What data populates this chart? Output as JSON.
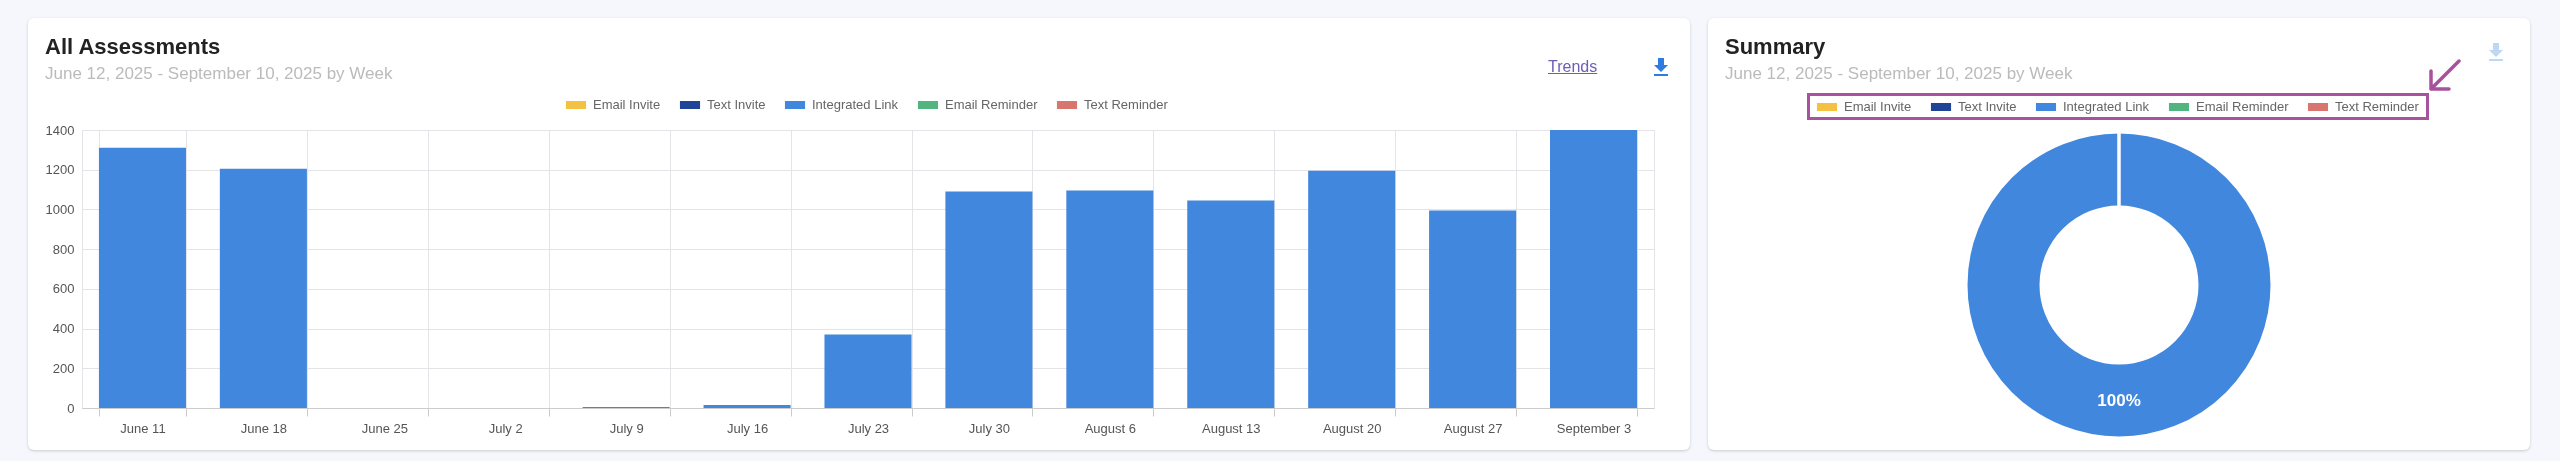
{
  "chart_data": [
    {
      "type": "bar",
      "title": "All Assessments",
      "subtitle": "June 12, 2025 - September 10, 2025 by Week",
      "stacked": true,
      "categories": [
        "June 11",
        "June 18",
        "June 25",
        "July 2",
        "July 9",
        "July 16",
        "July 23",
        "July 30",
        "August 6",
        "August 13",
        "August 20",
        "August 27",
        "September 3"
      ],
      "series": [
        {
          "name": "Email Invite",
          "color": "#f4c142",
          "values": [
            0,
            0,
            0,
            0,
            0,
            0,
            0,
            0,
            0,
            0,
            0,
            0,
            0
          ]
        },
        {
          "name": "Text Invite",
          "color": "#1f4497",
          "values": [
            0,
            0,
            0,
            0,
            0,
            0,
            0,
            0,
            0,
            0,
            0,
            0,
            0
          ]
        },
        {
          "name": "Integrated Link",
          "color": "#4287de",
          "values": [
            1310,
            1205,
            0,
            null,
            5,
            15,
            370,
            1090,
            1095,
            1045,
            1195,
            995,
            1400
          ]
        },
        {
          "name": "Email Reminder",
          "color": "#52b47e",
          "values": [
            0,
            0,
            0,
            0,
            0,
            0,
            0,
            0,
            0,
            0,
            0,
            0,
            0
          ]
        },
        {
          "name": "Text Reminder",
          "color": "#d9756f",
          "values": [
            0,
            0,
            0,
            0,
            0,
            0,
            0,
            0,
            0,
            0,
            0,
            0,
            0
          ]
        }
      ],
      "ylim": [
        0,
        1400
      ],
      "yticks": [
        0,
        200,
        400,
        600,
        800,
        1000,
        1200,
        1400
      ],
      "grid": true,
      "legend": "top",
      "annotations": [
        "Trends"
      ]
    },
    {
      "type": "donut",
      "title": "Summary",
      "subtitle": "June 12, 2025 - September 10, 2025 by Week",
      "categories": [
        "Email Invite",
        "Text Invite",
        "Integrated Link",
        "Email Reminder",
        "Text Reminder"
      ],
      "values": [
        0,
        0,
        100,
        0,
        0
      ],
      "colors": [
        "#f4c142",
        "#1f4497",
        "#4287de",
        "#52b47e",
        "#d9756f"
      ],
      "value_labels": [
        null,
        null,
        "100%",
        null,
        null
      ],
      "legend": "top"
    }
  ]
}
